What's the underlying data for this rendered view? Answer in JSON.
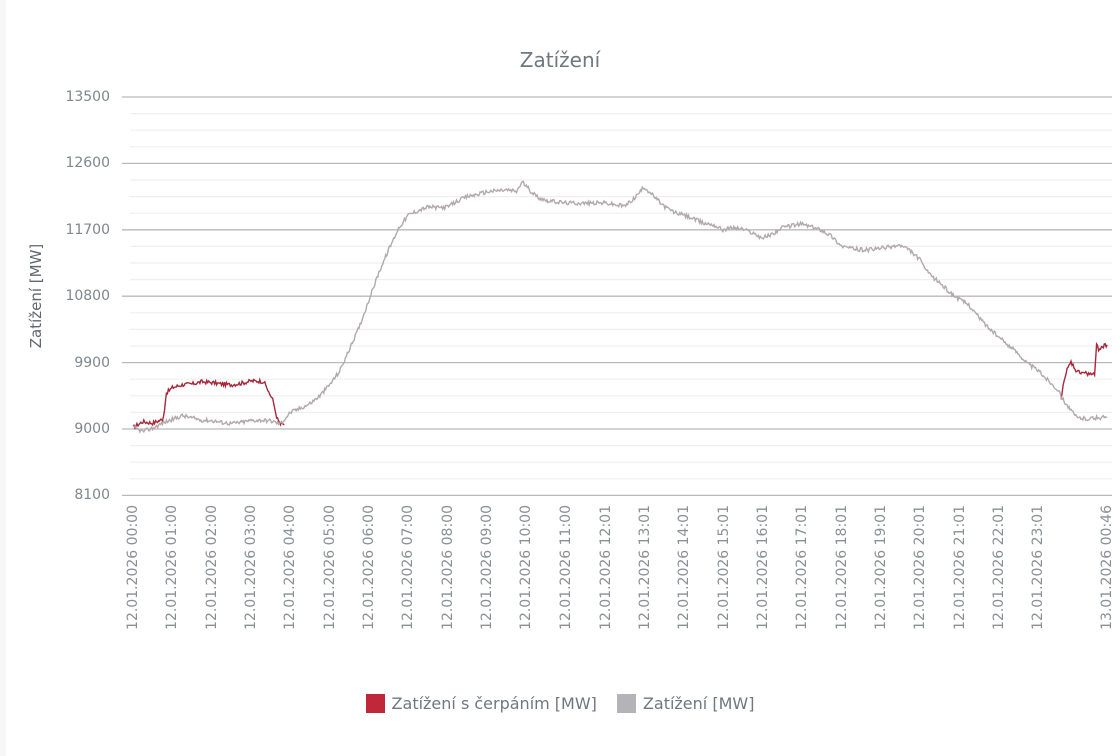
{
  "title": "Zatížení",
  "y_axis": {
    "title": "Zatížení [MW]",
    "ticks": [
      13500,
      12600,
      11700,
      10800,
      9900,
      9000,
      8100
    ]
  },
  "x_axis": {
    "ticks": [
      "12.01.2026 00:00",
      "12.01.2026 01:00",
      "12.01.2026 02:00",
      "12.01.2026 03:00",
      "12.01.2026 04:00",
      "12.01.2026 05:00",
      "12.01.2026 06:00",
      "12.01.2026 07:00",
      "12.01.2026 08:00",
      "12.01.2026 09:00",
      "12.01.2026 10:00",
      "12.01.2026 11:00",
      "12.01.2026 12:01",
      "12.01.2026 13:01",
      "12.01.2026 14:01",
      "12.01.2026 15:01",
      "12.01.2026 16:01",
      "12.01.2026 17:01",
      "12.01.2026 18:01",
      "12.01.2026 19:01",
      "12.01.2026 20:01",
      "12.01.2026 21:01",
      "12.01.2026 22:01",
      "12.01.2026 23:01",
      "13.01.2026 00:46"
    ],
    "tick_hours": [
      0,
      1,
      2,
      3,
      4,
      5,
      6,
      7,
      8,
      9,
      10,
      11,
      12.017,
      13.017,
      14.017,
      15.017,
      16.017,
      17.017,
      18.017,
      19.017,
      20.017,
      21.017,
      22.017,
      23.017,
      24.767
    ]
  },
  "legend": {
    "items": [
      {
        "label": "Zatížení s čerpáním [MW]",
        "color": "#c0283a"
      },
      {
        "label": "Zatížení [MW]",
        "color": "#b4b3b8"
      }
    ]
  },
  "chart_data": {
    "type": "line",
    "title": "Zatížení",
    "xlabel": "",
    "ylabel": "Zatížení [MW]",
    "ylim": [
      8100,
      13500
    ],
    "y_major_step": 900,
    "y_minor_step": 225,
    "grid": true,
    "legend_position": "bottom",
    "x_unit": "hours since 12.01.2026 00:00",
    "series": [
      {
        "name": "Zatížení s čerpáním [MW]",
        "color": "#c0283a",
        "x": [
          0,
          0.25,
          0.5,
          0.75,
          0.8,
          0.85,
          1.0,
          1.25,
          1.5,
          1.75,
          2.0,
          2.25,
          2.5,
          2.75,
          3.0,
          3.2,
          3.35,
          3.45,
          3.55,
          3.65,
          3.75,
          3.85,
          23.6,
          23.65,
          23.75,
          23.85,
          24.0,
          24.2,
          24.45,
          24.5,
          24.55,
          24.65,
          24.767
        ],
        "values": [
          9020,
          9100,
          9080,
          9130,
          9250,
          9490,
          9560,
          9600,
          9610,
          9640,
          9630,
          9610,
          9600,
          9620,
          9650,
          9650,
          9640,
          9480,
          9420,
          9150,
          9080,
          9060,
          9400,
          9600,
          9800,
          9900,
          9770,
          9760,
          9730,
          10150,
          10080,
          10120,
          10140
        ]
      },
      {
        "name": "Zatížení [MW]",
        "color": "#b4b3b8",
        "x": [
          0,
          0.25,
          0.5,
          0.75,
          1.0,
          1.25,
          1.5,
          1.75,
          2.0,
          2.25,
          2.5,
          2.75,
          3.0,
          3.25,
          3.5,
          3.75,
          4.0,
          4.25,
          4.5,
          4.75,
          5.0,
          5.25,
          5.5,
          5.75,
          6.0,
          6.25,
          6.5,
          6.75,
          7.0,
          7.25,
          7.5,
          7.75,
          8.0,
          8.25,
          8.5,
          8.75,
          9.0,
          9.25,
          9.5,
          9.75,
          9.9,
          10.1,
          10.3,
          10.5,
          10.75,
          11.0,
          11.5,
          12.0,
          12.25,
          12.5,
          12.75,
          13.0,
          13.25,
          13.5,
          13.75,
          14.0,
          14.25,
          14.5,
          14.75,
          15.0,
          15.25,
          15.5,
          15.75,
          16.0,
          16.25,
          16.5,
          16.75,
          17.0,
          17.25,
          17.5,
          17.75,
          18.0,
          18.25,
          18.5,
          18.75,
          19.0,
          19.25,
          19.5,
          19.75,
          20.0,
          20.25,
          20.5,
          20.75,
          21.0,
          21.25,
          21.5,
          21.75,
          22.0,
          22.25,
          22.5,
          22.75,
          23.0,
          23.25,
          23.5,
          23.65,
          23.85,
          24.0,
          24.25,
          24.5,
          24.767
        ],
        "values": [
          9020,
          8966,
          9010,
          9080,
          9130,
          9180,
          9150,
          9120,
          9115,
          9090,
          9075,
          9090,
          9115,
          9120,
          9110,
          9070,
          9225,
          9280,
          9345,
          9450,
          9600,
          9780,
          10075,
          10380,
          10750,
          11120,
          11430,
          11720,
          11900,
          11960,
          12010,
          12000,
          12010,
          12090,
          12150,
          12180,
          12215,
          12230,
          12240,
          12220,
          12350,
          12230,
          12140,
          12100,
          12080,
          12065,
          12060,
          12065,
          12040,
          12020,
          12130,
          12280,
          12150,
          12020,
          11940,
          11900,
          11850,
          11790,
          11770,
          11700,
          11730,
          11710,
          11660,
          11590,
          11640,
          11725,
          11760,
          11780,
          11740,
          11700,
          11620,
          11485,
          11450,
          11430,
          11430,
          11450,
          11470,
          11490,
          11420,
          11300,
          11090,
          10990,
          10860,
          10760,
          10685,
          10520,
          10375,
          10250,
          10140,
          10030,
          9885,
          9800,
          9670,
          9540,
          9400,
          9250,
          9155,
          9140,
          9150,
          9160
        ]
      }
    ]
  }
}
